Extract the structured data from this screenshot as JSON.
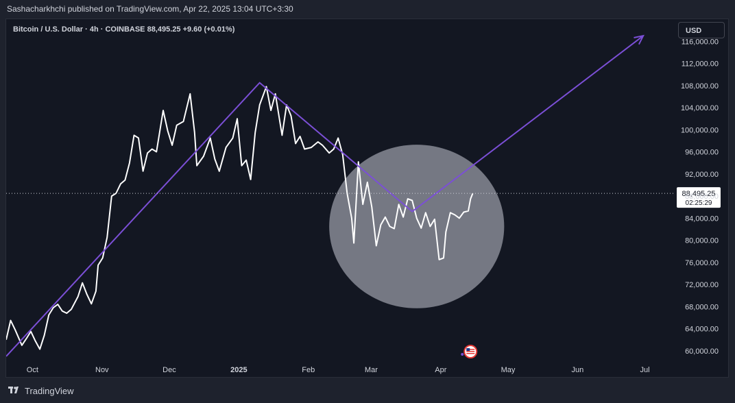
{
  "header": {
    "published_text": "Sashacharkhchi published on TradingView.com, Apr 22, 2025 13:04 UTC+3:30"
  },
  "chart": {
    "symbol_line": "Bitcoin / U.S. Dollar · 4h · COINBASE  88,495.25  +9.60 (+0.01%)",
    "currency_label": "USD",
    "last_price_label": "88,495.25",
    "countdown_label": "02:25:29",
    "event_marker_icon": "us-flag-icon"
  },
  "footer": {
    "brand_label": "TradingView",
    "logo_icon": "tradingview-logo-icon"
  },
  "colors": {
    "background": "#131722",
    "price_line": "#ffffff",
    "projection_line": "#7b4fd6",
    "highlight_circle": "#b2b5be",
    "axis_text": "#d1d4dc"
  },
  "chart_data": {
    "type": "line",
    "title": "Bitcoin / U.S. Dollar · 4h · COINBASE",
    "xlabel": "",
    "ylabel": "",
    "ylim": [
      58000,
      120000
    ],
    "y_ticks": [
      "60,000.00",
      "64,000.00",
      "68,000.00",
      "72,000.00",
      "76,000.00",
      "80,000.00",
      "84,000.00",
      "88,000.00",
      "92,000.00",
      "96,000.00",
      "100,000.00",
      "104,000.00",
      "108,000.00",
      "112,000.00",
      "116,000.00"
    ],
    "y_tick_values": [
      60000,
      64000,
      68000,
      72000,
      76000,
      80000,
      84000,
      88000,
      92000,
      96000,
      100000,
      104000,
      108000,
      112000,
      116000
    ],
    "x_ticks": [
      "Oct",
      "Nov",
      "Dec",
      "2025",
      "Feb",
      "Mar",
      "Apr",
      "May",
      "Jun",
      "Jul"
    ],
    "x_tick_dates": [
      "2024-10-01",
      "2024-11-01",
      "2024-12-01",
      "2025-01-01",
      "2025-02-01",
      "2025-03-01",
      "2025-04-01",
      "2025-05-01",
      "2025-06-01",
      "2025-07-01"
    ],
    "xlim": [
      "2024-09-26",
      "2025-07-21"
    ],
    "last_price": 88495.25,
    "series": [
      {
        "values": [
          [
            "2024-09-26",
            62000
          ],
          [
            "2024-09-28",
            65500
          ],
          [
            "2024-09-30",
            63800
          ],
          [
            "2024-10-03",
            61000
          ],
          [
            "2024-10-05",
            62200
          ],
          [
            "2024-10-07",
            63500
          ],
          [
            "2024-10-09",
            61800
          ],
          [
            "2024-10-11",
            60300
          ],
          [
            "2024-10-13",
            62800
          ],
          [
            "2024-10-15",
            66500
          ],
          [
            "2024-10-17",
            67800
          ],
          [
            "2024-10-19",
            68400
          ],
          [
            "2024-10-21",
            67200
          ],
          [
            "2024-10-23",
            66800
          ],
          [
            "2024-10-25",
            67500
          ],
          [
            "2024-10-28",
            69800
          ],
          [
            "2024-10-30",
            72300
          ],
          [
            "2024-11-01",
            70200
          ],
          [
            "2024-11-03",
            68500
          ],
          [
            "2024-11-05",
            70800
          ],
          [
            "2024-11-06",
            75500
          ],
          [
            "2024-11-08",
            76800
          ],
          [
            "2024-11-10",
            80500
          ],
          [
            "2024-11-12",
            88000
          ],
          [
            "2024-11-14",
            88500
          ],
          [
            "2024-11-16",
            90200
          ],
          [
            "2024-11-18",
            90900
          ],
          [
            "2024-11-20",
            94000
          ],
          [
            "2024-11-22",
            99000
          ],
          [
            "2024-11-24",
            98500
          ],
          [
            "2024-11-26",
            92500
          ],
          [
            "2024-11-28",
            95800
          ],
          [
            "2024-11-30",
            96500
          ],
          [
            "2024-12-02",
            96000
          ],
          [
            "2024-12-05",
            103500
          ],
          [
            "2024-12-07",
            99800
          ],
          [
            "2024-12-09",
            97200
          ],
          [
            "2024-12-11",
            100800
          ],
          [
            "2024-12-14",
            101500
          ],
          [
            "2024-12-17",
            106500
          ],
          [
            "2024-12-19",
            99500
          ],
          [
            "2024-12-20",
            93500
          ],
          [
            "2024-12-23",
            95200
          ],
          [
            "2024-12-26",
            98500
          ],
          [
            "2024-12-28",
            94700
          ],
          [
            "2024-12-30",
            92500
          ],
          [
            "2025-01-02",
            96800
          ],
          [
            "2025-01-05",
            98500
          ],
          [
            "2025-01-07",
            102000
          ],
          [
            "2025-01-09",
            93500
          ],
          [
            "2025-01-11",
            94500
          ],
          [
            "2025-01-13",
            91000
          ],
          [
            "2025-01-15",
            99500
          ],
          [
            "2025-01-17",
            104500
          ],
          [
            "2025-01-20",
            107800
          ],
          [
            "2025-01-22",
            103500
          ],
          [
            "2025-01-24",
            106500
          ],
          [
            "2025-01-27",
            99000
          ],
          [
            "2025-01-29",
            104500
          ],
          [
            "2025-01-31",
            102500
          ],
          [
            "2025-02-02",
            97500
          ],
          [
            "2025-02-04",
            98800
          ],
          [
            "2025-02-06",
            96500
          ],
          [
            "2025-02-09",
            96800
          ],
          [
            "2025-02-12",
            97800
          ],
          [
            "2025-02-14",
            97200
          ],
          [
            "2025-02-17",
            95800
          ],
          [
            "2025-02-19",
            96500
          ],
          [
            "2025-02-21",
            98500
          ],
          [
            "2025-02-23",
            95500
          ],
          [
            "2025-02-25",
            88500
          ],
          [
            "2025-02-27",
            84000
          ],
          [
            "2025-02-28",
            79500
          ],
          [
            "2025-03-02",
            94200
          ],
          [
            "2025-03-04",
            86500
          ],
          [
            "2025-03-06",
            90500
          ],
          [
            "2025-03-08",
            86000
          ],
          [
            "2025-03-10",
            79000
          ],
          [
            "2025-03-12",
            82800
          ],
          [
            "2025-03-14",
            84200
          ],
          [
            "2025-03-16",
            82500
          ],
          [
            "2025-03-18",
            82100
          ],
          [
            "2025-03-20",
            86500
          ],
          [
            "2025-03-22",
            84200
          ],
          [
            "2025-03-24",
            87500
          ],
          [
            "2025-03-26",
            87200
          ],
          [
            "2025-03-28",
            84000
          ],
          [
            "2025-03-30",
            82200
          ],
          [
            "2025-04-01",
            85000
          ],
          [
            "2025-04-03",
            82500
          ],
          [
            "2025-04-05",
            83800
          ],
          [
            "2025-04-07",
            76500
          ],
          [
            "2025-04-09",
            76800
          ],
          [
            "2025-04-10",
            81500
          ],
          [
            "2025-04-12",
            85000
          ],
          [
            "2025-04-14",
            84600
          ],
          [
            "2025-04-16",
            84000
          ],
          [
            "2025-04-18",
            85100
          ],
          [
            "2025-04-20",
            85300
          ],
          [
            "2025-04-21",
            87500
          ],
          [
            "2025-04-22",
            88495
          ]
        ]
      }
    ],
    "annotations": [
      {
        "type": "polyline",
        "label": "projection path",
        "points": [
          [
            "2024-09-26",
            59000
          ],
          [
            "2025-01-17",
            108500
          ],
          [
            "2025-03-26",
            85200
          ],
          [
            "2025-07-07",
            117000
          ]
        ],
        "arrow_end": true
      },
      {
        "type": "circle",
        "label": "highlight zone",
        "center": [
          "2025-03-28",
          82500
        ],
        "x_radius_days": 39,
        "y_radius": 14800
      },
      {
        "type": "hline",
        "label": "last price",
        "value": 88495.25,
        "style": "dotted"
      }
    ]
  }
}
